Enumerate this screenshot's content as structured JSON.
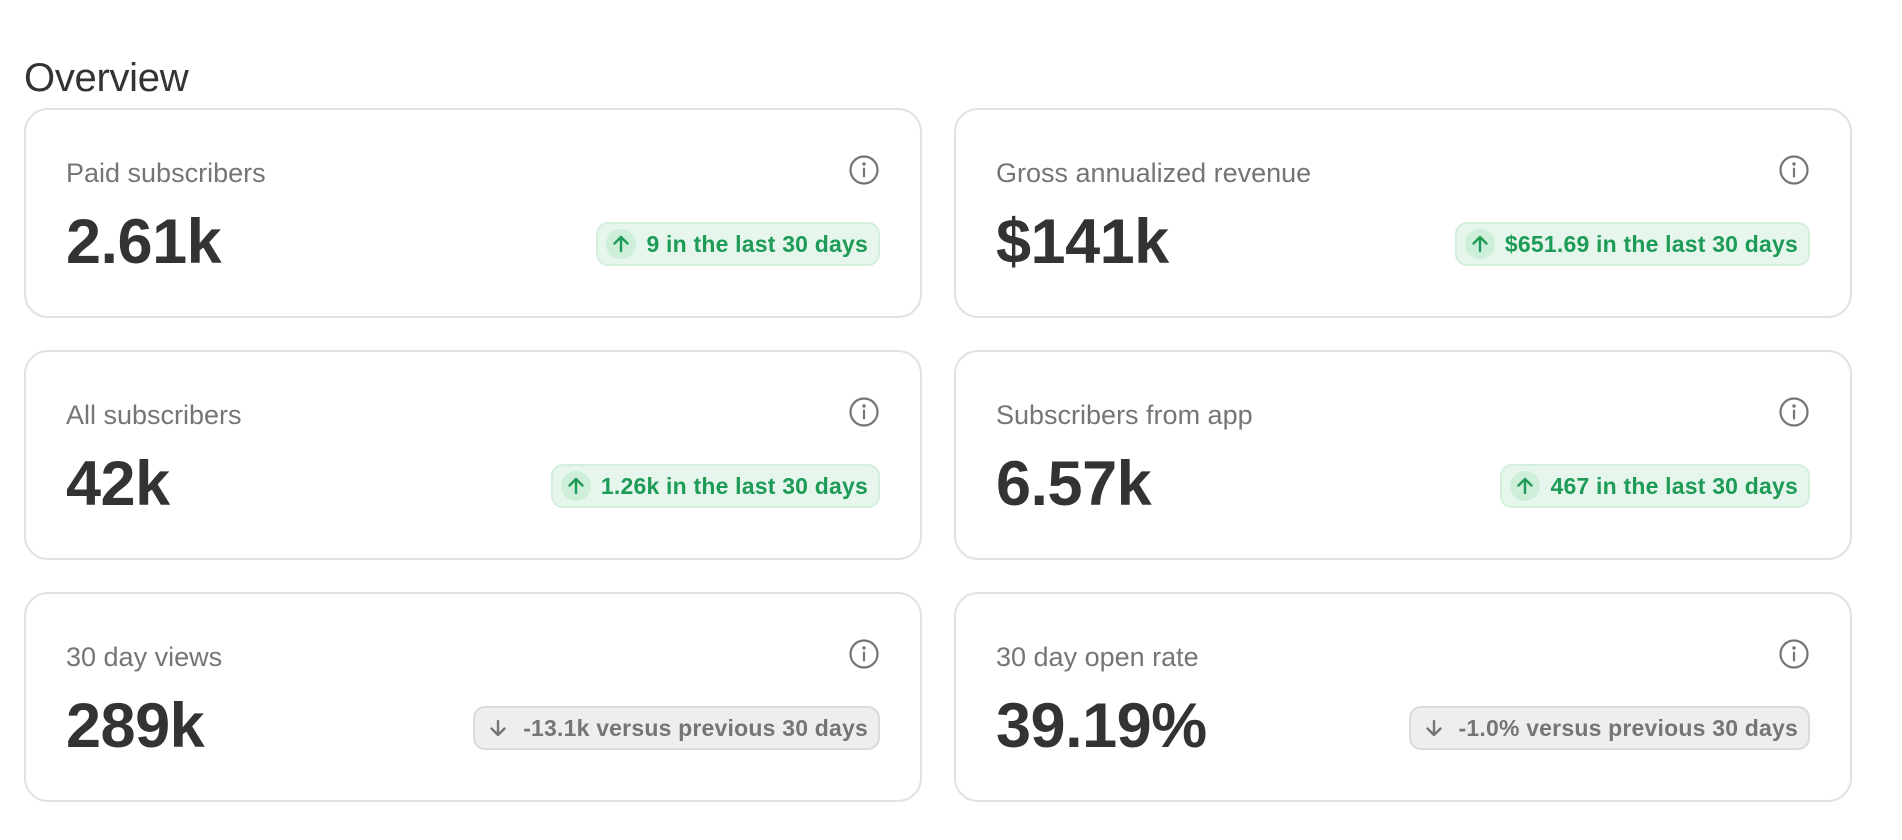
{
  "page": {
    "title": "Overview"
  },
  "cards": [
    {
      "label": "Paid subscribers",
      "value": "2.61k",
      "trend": "up",
      "trend_icon": "arrow-up-icon",
      "delta_text": "9 in the last 30 days"
    },
    {
      "label": "Gross annualized revenue",
      "value": "$141k",
      "trend": "up",
      "trend_icon": "arrow-up-icon",
      "delta_text": "$651.69 in the last 30 days"
    },
    {
      "label": "All subscribers",
      "value": "42k",
      "trend": "up",
      "trend_icon": "arrow-up-icon",
      "delta_text": "1.26k in the last 30 days"
    },
    {
      "label": "Subscribers from app",
      "value": "6.57k",
      "trend": "up",
      "trend_icon": "arrow-up-icon",
      "delta_text": "467 in the last 30 days"
    },
    {
      "label": "30 day views",
      "value": "289k",
      "trend": "down",
      "trend_icon": "arrow-down-icon",
      "delta_text": "-13.1k versus previous 30 days"
    },
    {
      "label": "30 day open rate",
      "value": "39.19%",
      "trend": "down",
      "trend_icon": "arrow-down-icon",
      "delta_text": "-1.0% versus previous 30 days"
    }
  ],
  "icons": {
    "info": "info-icon",
    "up": "arrow-up-icon",
    "down": "arrow-down-icon"
  },
  "colors": {
    "text_primary": "#333333",
    "text_secondary": "#757575",
    "card_border": "#e2e2e2",
    "positive_text": "#1d9b57",
    "positive_bg": "#e6f6ec",
    "neutral_bg": "#eeeeee"
  }
}
